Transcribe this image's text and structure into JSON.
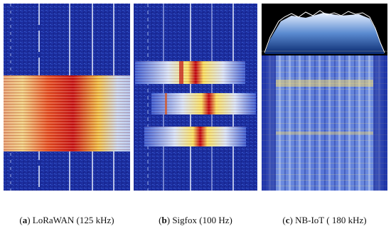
{
  "figures": [
    {
      "caption_parts": [
        "(",
        "a",
        ") LoRaWAN (125 kHz)"
      ]
    },
    {
      "caption_parts": [
        "(",
        "b",
        ") Sigfox (100 Hz)"
      ]
    },
    {
      "caption_parts": [
        "(",
        "c",
        ") NB-IoT ( 180 kHz)"
      ]
    }
  ]
}
